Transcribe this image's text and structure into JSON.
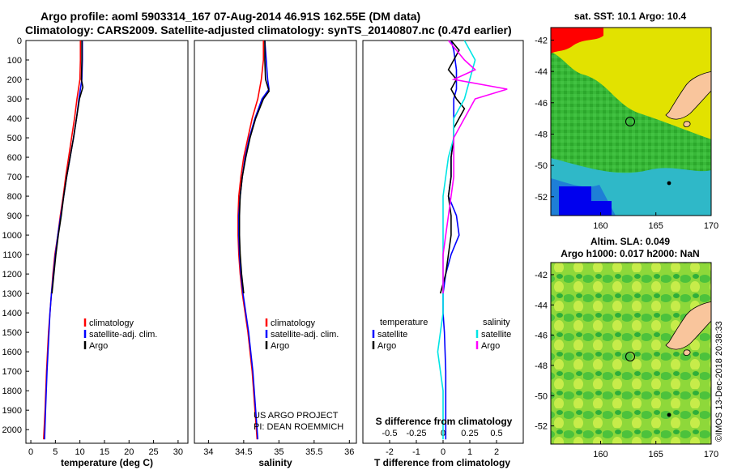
{
  "header": {
    "title_line1": "Argo profile: aoml 5903314_167 07-Aug-2014 46.91S 162.55E (DM data)",
    "title_line2": "Climatology: CARS2009. Satellite-adjusted climatology: synTS_20140807.nc (0.47d earlier)"
  },
  "map_titles": {
    "sst": "sat. SST: 10.1 Argo: 10.4",
    "sla1": "Altim. SLA: 0.049",
    "sla2": "Argo h1000: 0.017 h2000: NaN"
  },
  "credit": "©IMOS 13-Dec-2018 20:38:33",
  "project_note": [
    "US ARGO PROJECT",
    "PI: DEAN ROEMMICH"
  ],
  "legend_profile": {
    "items": [
      {
        "label": "climatology",
        "color": "#ff0000"
      },
      {
        "label": "satellite-adj. clim.",
        "color": "#0000ff"
      },
      {
        "label": "Argo",
        "color": "#000000"
      }
    ]
  },
  "legend_diff": {
    "temp_header": "temperature",
    "sal_header": "salinity",
    "temp_items": [
      {
        "label": "satellite",
        "color": "#0000ff"
      },
      {
        "label": "Argo",
        "color": "#000000"
      }
    ],
    "sal_items": [
      {
        "label": "satellite",
        "color": "#00e5e5"
      },
      {
        "label": "Argo",
        "color": "#ff00ff"
      }
    ]
  },
  "chart_data": [
    {
      "type": "line",
      "xlabel": "temperature (deg C)",
      "ylabel": "",
      "xlim": [
        -1,
        32
      ],
      "ylim": [
        2070,
        0
      ],
      "x_ticks": [
        0,
        5,
        10,
        15,
        20,
        25,
        30
      ],
      "y_ticks": [
        0,
        100,
        200,
        300,
        400,
        500,
        600,
        700,
        800,
        900,
        1000,
        1100,
        1200,
        1300,
        1400,
        1500,
        1600,
        1700,
        1800,
        1900,
        2000
      ],
      "series": [
        {
          "name": "climatology",
          "color": "#ff0000",
          "depth": [
            0,
            100,
            200,
            300,
            400,
            500,
            600,
            700,
            800,
            900,
            1000,
            1100,
            1200,
            1300,
            1400,
            1500,
            1700,
            1900,
            2050
          ],
          "values": [
            10.1,
            10.1,
            10.0,
            9.4,
            8.9,
            8.3,
            7.7,
            7.1,
            6.6,
            6.0,
            5.5,
            4.9,
            4.5,
            4.2,
            3.9,
            3.6,
            3.2,
            2.9,
            2.6
          ]
        },
        {
          "name": "satellite-adj. clim.",
          "color": "#0000ff",
          "depth": [
            0,
            100,
            200,
            300,
            400,
            500,
            600,
            700,
            800,
            900,
            1000,
            1100,
            1200,
            1300,
            1400,
            1500,
            1700,
            1900,
            2050
          ],
          "values": [
            10.5,
            10.5,
            10.4,
            9.8,
            9.3,
            8.7,
            8.0,
            7.3,
            6.7,
            6.1,
            5.5,
            5.0,
            4.6,
            4.2,
            3.9,
            3.7,
            3.3,
            3.0,
            2.8
          ]
        },
        {
          "name": "Argo",
          "color": "#000000",
          "depth": [
            0,
            100,
            200,
            240,
            300,
            400,
            500,
            600,
            700,
            800,
            900,
            1000,
            1100,
            1200,
            1300
          ],
          "values": [
            10.4,
            10.4,
            10.3,
            10.6,
            9.9,
            9.3,
            8.7,
            8.0,
            7.3,
            6.7,
            6.2,
            5.6,
            5.1,
            4.7,
            4.3
          ]
        }
      ]
    },
    {
      "type": "line",
      "xlabel": "salinity",
      "ylabel": "",
      "xlim": [
        33.8,
        36.1
      ],
      "ylim": [
        2070,
        0
      ],
      "x_ticks": [
        34,
        34.5,
        35,
        35.5,
        36
      ],
      "series": [
        {
          "name": "climatology",
          "color": "#ff0000",
          "depth": [
            0,
            100,
            200,
            300,
            400,
            500,
            600,
            700,
            800,
            900,
            1000,
            1100,
            1200,
            1300,
            1400,
            1500,
            1700,
            1900,
            2050
          ],
          "values": [
            34.78,
            34.78,
            34.75,
            34.7,
            34.62,
            34.56,
            34.5,
            34.46,
            34.43,
            34.42,
            34.42,
            34.43,
            34.45,
            34.48,
            34.52,
            34.56,
            34.62,
            34.66,
            34.69
          ]
        },
        {
          "name": "satellite-adj. clim.",
          "color": "#0000ff",
          "depth": [
            0,
            100,
            200,
            250,
            300,
            400,
            500,
            600,
            700,
            800,
            900,
            1000,
            1100,
            1200,
            1300,
            1400,
            1500,
            1700,
            1900,
            2050
          ],
          "values": [
            34.8,
            34.82,
            34.84,
            34.86,
            34.76,
            34.66,
            34.58,
            34.52,
            34.48,
            34.45,
            34.43,
            34.43,
            34.44,
            34.46,
            34.49,
            34.53,
            34.57,
            34.63,
            34.67,
            34.7
          ]
        },
        {
          "name": "Argo",
          "color": "#000000",
          "depth": [
            0,
            100,
            200,
            260,
            300,
            400,
            500,
            600,
            700,
            800,
            900,
            1000,
            1100,
            1200,
            1300
          ],
          "values": [
            34.8,
            34.8,
            34.81,
            34.86,
            34.78,
            34.67,
            34.59,
            34.53,
            34.48,
            34.45,
            34.44,
            34.44,
            34.45,
            34.47,
            34.5
          ]
        }
      ]
    },
    {
      "type": "line",
      "xlabel": "T difference from climatology",
      "secondary_xlabel": "S difference from climatology",
      "xlim": [
        -3,
        3
      ],
      "ylim": [
        2070,
        0
      ],
      "x_ticks": [
        -2,
        -1,
        0,
        1,
        2
      ],
      "secondary_x_ticks": [
        "-0.5",
        "-0.25",
        "0",
        "0.25",
        "0.5"
      ],
      "series": [
        {
          "name": "temperature satellite",
          "color": "#0000ff",
          "depth": [
            0,
            50,
            150,
            250,
            300,
            400,
            500,
            600,
            700,
            800,
            900,
            1000,
            1100,
            1200,
            1300,
            1400,
            1500,
            1700,
            1900,
            2050
          ],
          "values": [
            0.3,
            0.4,
            0.5,
            0.5,
            0.4,
            0.4,
            0.4,
            0.3,
            0.3,
            0.2,
            0.5,
            0.6,
            0.3,
            0.1,
            0.0,
            0.0,
            0.05,
            0.1,
            0.1,
            0.1
          ]
        },
        {
          "name": "temperature Argo",
          "color": "#000000",
          "depth": [
            0,
            50,
            100,
            150,
            200,
            250,
            300,
            350,
            400,
            450,
            500,
            600,
            700,
            800,
            900,
            1000,
            1100,
            1200,
            1300
          ],
          "values": [
            0.3,
            0.6,
            0.4,
            0.2,
            0.5,
            0.3,
            0.5,
            0.8,
            0.6,
            0.4,
            0.4,
            0.3,
            0.3,
            0.2,
            0.3,
            0.3,
            0.2,
            0.1,
            -0.1
          ]
        },
        {
          "name": "salinity satellite",
          "color": "#00e5e5",
          "depth": [
            0,
            100,
            200,
            300,
            400,
            500,
            600,
            800,
            1000,
            1200,
            1400,
            1600,
            1800,
            2050
          ],
          "values": [
            0.2,
            0.3,
            0.25,
            0.2,
            0.1,
            0.1,
            0.05,
            0.0,
            0.0,
            0.0,
            0.0,
            -0.05,
            0.0,
            0.0
          ]
        },
        {
          "name": "salinity Argo",
          "color": "#ff00ff",
          "depth": [
            0,
            100,
            150,
            200,
            250,
            300,
            400,
            500,
            700,
            900,
            1100,
            1300
          ],
          "values": [
            0.05,
            0.2,
            0.3,
            0.1,
            0.6,
            0.3,
            0.2,
            0.1,
            0.1,
            0.05,
            0.0,
            0.0
          ]
        }
      ]
    },
    {
      "type": "heatmap",
      "title": "sat. SST: 10.1 Argo: 10.4",
      "xlim": [
        155.5,
        170
      ],
      "ylim": [
        -53.2,
        -41.2
      ],
      "x_ticks": [
        160,
        165,
        170
      ],
      "y_ticks": [
        -42,
        -44,
        -46,
        -48,
        -50,
        -52
      ],
      "marker": {
        "lon": 162.55,
        "lat": -46.91
      }
    },
    {
      "type": "heatmap",
      "title": "Altim. SLA: 0.049",
      "xlim": [
        155.5,
        170
      ],
      "ylim": [
        -53.2,
        -41.2
      ],
      "x_ticks": [
        160,
        165,
        170
      ],
      "y_ticks": [
        -42,
        -44,
        -46,
        -48,
        -50,
        -52
      ],
      "marker": {
        "lon": 162.55,
        "lat": -46.91
      }
    }
  ]
}
